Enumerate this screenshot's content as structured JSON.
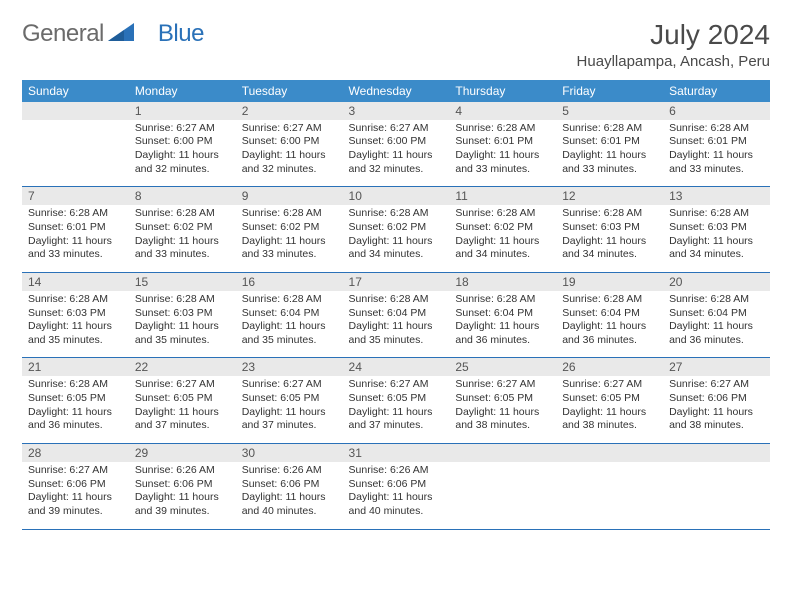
{
  "logo": {
    "part1": "General",
    "part2": "Blue"
  },
  "title": "July 2024",
  "location": "Huayllapampa, Ancash, Peru",
  "colors": {
    "header_bg": "#3b8bc9",
    "rule": "#2a71b8",
    "daynum_bg": "#e9e9e9",
    "text": "#333333",
    "logo_gray": "#6b6b6b",
    "logo_blue": "#2a71b8"
  },
  "day_names": [
    "Sunday",
    "Monday",
    "Tuesday",
    "Wednesday",
    "Thursday",
    "Friday",
    "Saturday"
  ],
  "weeks": [
    [
      {
        "n": "",
        "lines": []
      },
      {
        "n": "1",
        "lines": [
          "Sunrise: 6:27 AM",
          "Sunset: 6:00 PM",
          "Daylight: 11 hours",
          "and 32 minutes."
        ]
      },
      {
        "n": "2",
        "lines": [
          "Sunrise: 6:27 AM",
          "Sunset: 6:00 PM",
          "Daylight: 11 hours",
          "and 32 minutes."
        ]
      },
      {
        "n": "3",
        "lines": [
          "Sunrise: 6:27 AM",
          "Sunset: 6:00 PM",
          "Daylight: 11 hours",
          "and 32 minutes."
        ]
      },
      {
        "n": "4",
        "lines": [
          "Sunrise: 6:28 AM",
          "Sunset: 6:01 PM",
          "Daylight: 11 hours",
          "and 33 minutes."
        ]
      },
      {
        "n": "5",
        "lines": [
          "Sunrise: 6:28 AM",
          "Sunset: 6:01 PM",
          "Daylight: 11 hours",
          "and 33 minutes."
        ]
      },
      {
        "n": "6",
        "lines": [
          "Sunrise: 6:28 AM",
          "Sunset: 6:01 PM",
          "Daylight: 11 hours",
          "and 33 minutes."
        ]
      }
    ],
    [
      {
        "n": "7",
        "lines": [
          "Sunrise: 6:28 AM",
          "Sunset: 6:01 PM",
          "Daylight: 11 hours",
          "and 33 minutes."
        ]
      },
      {
        "n": "8",
        "lines": [
          "Sunrise: 6:28 AM",
          "Sunset: 6:02 PM",
          "Daylight: 11 hours",
          "and 33 minutes."
        ]
      },
      {
        "n": "9",
        "lines": [
          "Sunrise: 6:28 AM",
          "Sunset: 6:02 PM",
          "Daylight: 11 hours",
          "and 33 minutes."
        ]
      },
      {
        "n": "10",
        "lines": [
          "Sunrise: 6:28 AM",
          "Sunset: 6:02 PM",
          "Daylight: 11 hours",
          "and 34 minutes."
        ]
      },
      {
        "n": "11",
        "lines": [
          "Sunrise: 6:28 AM",
          "Sunset: 6:02 PM",
          "Daylight: 11 hours",
          "and 34 minutes."
        ]
      },
      {
        "n": "12",
        "lines": [
          "Sunrise: 6:28 AM",
          "Sunset: 6:03 PM",
          "Daylight: 11 hours",
          "and 34 minutes."
        ]
      },
      {
        "n": "13",
        "lines": [
          "Sunrise: 6:28 AM",
          "Sunset: 6:03 PM",
          "Daylight: 11 hours",
          "and 34 minutes."
        ]
      }
    ],
    [
      {
        "n": "14",
        "lines": [
          "Sunrise: 6:28 AM",
          "Sunset: 6:03 PM",
          "Daylight: 11 hours",
          "and 35 minutes."
        ]
      },
      {
        "n": "15",
        "lines": [
          "Sunrise: 6:28 AM",
          "Sunset: 6:03 PM",
          "Daylight: 11 hours",
          "and 35 minutes."
        ]
      },
      {
        "n": "16",
        "lines": [
          "Sunrise: 6:28 AM",
          "Sunset: 6:04 PM",
          "Daylight: 11 hours",
          "and 35 minutes."
        ]
      },
      {
        "n": "17",
        "lines": [
          "Sunrise: 6:28 AM",
          "Sunset: 6:04 PM",
          "Daylight: 11 hours",
          "and 35 minutes."
        ]
      },
      {
        "n": "18",
        "lines": [
          "Sunrise: 6:28 AM",
          "Sunset: 6:04 PM",
          "Daylight: 11 hours",
          "and 36 minutes."
        ]
      },
      {
        "n": "19",
        "lines": [
          "Sunrise: 6:28 AM",
          "Sunset: 6:04 PM",
          "Daylight: 11 hours",
          "and 36 minutes."
        ]
      },
      {
        "n": "20",
        "lines": [
          "Sunrise: 6:28 AM",
          "Sunset: 6:04 PM",
          "Daylight: 11 hours",
          "and 36 minutes."
        ]
      }
    ],
    [
      {
        "n": "21",
        "lines": [
          "Sunrise: 6:28 AM",
          "Sunset: 6:05 PM",
          "Daylight: 11 hours",
          "and 36 minutes."
        ]
      },
      {
        "n": "22",
        "lines": [
          "Sunrise: 6:27 AM",
          "Sunset: 6:05 PM",
          "Daylight: 11 hours",
          "and 37 minutes."
        ]
      },
      {
        "n": "23",
        "lines": [
          "Sunrise: 6:27 AM",
          "Sunset: 6:05 PM",
          "Daylight: 11 hours",
          "and 37 minutes."
        ]
      },
      {
        "n": "24",
        "lines": [
          "Sunrise: 6:27 AM",
          "Sunset: 6:05 PM",
          "Daylight: 11 hours",
          "and 37 minutes."
        ]
      },
      {
        "n": "25",
        "lines": [
          "Sunrise: 6:27 AM",
          "Sunset: 6:05 PM",
          "Daylight: 11 hours",
          "and 38 minutes."
        ]
      },
      {
        "n": "26",
        "lines": [
          "Sunrise: 6:27 AM",
          "Sunset: 6:05 PM",
          "Daylight: 11 hours",
          "and 38 minutes."
        ]
      },
      {
        "n": "27",
        "lines": [
          "Sunrise: 6:27 AM",
          "Sunset: 6:06 PM",
          "Daylight: 11 hours",
          "and 38 minutes."
        ]
      }
    ],
    [
      {
        "n": "28",
        "lines": [
          "Sunrise: 6:27 AM",
          "Sunset: 6:06 PM",
          "Daylight: 11 hours",
          "and 39 minutes."
        ]
      },
      {
        "n": "29",
        "lines": [
          "Sunrise: 6:26 AM",
          "Sunset: 6:06 PM",
          "Daylight: 11 hours",
          "and 39 minutes."
        ]
      },
      {
        "n": "30",
        "lines": [
          "Sunrise: 6:26 AM",
          "Sunset: 6:06 PM",
          "Daylight: 11 hours",
          "and 40 minutes."
        ]
      },
      {
        "n": "31",
        "lines": [
          "Sunrise: 6:26 AM",
          "Sunset: 6:06 PM",
          "Daylight: 11 hours",
          "and 40 minutes."
        ]
      },
      {
        "n": "",
        "lines": []
      },
      {
        "n": "",
        "lines": []
      },
      {
        "n": "",
        "lines": []
      }
    ]
  ]
}
